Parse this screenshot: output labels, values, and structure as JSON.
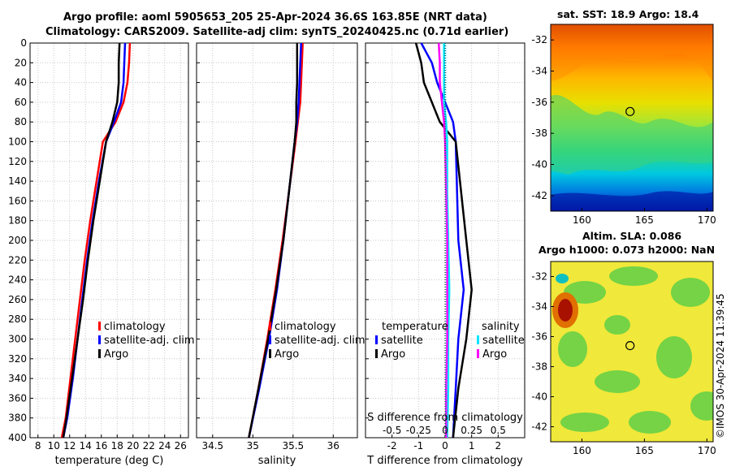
{
  "header": {
    "title_line1": "Argo profile: aoml 5905653_205 25-Apr-2024 36.6S 163.85E (NRT data)",
    "title_line2": "Climatology: CARS2009. Satellite-adj clim: synTS_20240425.nc (0.71d earlier)"
  },
  "timestamp": "©IMOS 30-Apr-2024 11:39:45",
  "colors": {
    "climatology": "#ff0000",
    "satellite": "#0000ff",
    "argo": "#000000",
    "satellite_salinity": "#00e5ff",
    "argo_salinity": "#ff00ff"
  },
  "chart_data": [
    {
      "type": "line",
      "name": "temperature-panel",
      "xlabel": "temperature (deg C)",
      "ylabel": "",
      "xlim": [
        7,
        27
      ],
      "ylim": [
        400,
        0
      ],
      "xticks": [
        8,
        10,
        12,
        14,
        16,
        18,
        20,
        22,
        24,
        26
      ],
      "yticks": [
        0,
        20,
        40,
        60,
        80,
        100,
        120,
        140,
        160,
        180,
        200,
        220,
        240,
        260,
        280,
        300,
        320,
        340,
        360,
        380,
        400
      ],
      "legend": [
        "climatology",
        "satellite-adj. clim",
        "Argo"
      ],
      "series": [
        {
          "name": "climatology",
          "color": "#ff0000",
          "points": [
            [
              19.6,
              0
            ],
            [
              19.5,
              20
            ],
            [
              19.3,
              40
            ],
            [
              18.8,
              60
            ],
            [
              17.8,
              80
            ],
            [
              16.2,
              100
            ],
            [
              15.4,
              140
            ],
            [
              14.6,
              180
            ],
            [
              13.9,
              220
            ],
            [
              13.3,
              260
            ],
            [
              12.7,
              300
            ],
            [
              12.1,
              340
            ],
            [
              11.5,
              380
            ],
            [
              11.0,
              400
            ]
          ]
        },
        {
          "name": "satellite-adj. clim",
          "color": "#0000ff",
          "points": [
            [
              19.0,
              0
            ],
            [
              18.9,
              20
            ],
            [
              18.8,
              40
            ],
            [
              18.5,
              60
            ],
            [
              17.6,
              80
            ],
            [
              16.6,
              100
            ],
            [
              15.7,
              140
            ],
            [
              14.9,
              180
            ],
            [
              14.2,
              220
            ],
            [
              13.6,
              260
            ],
            [
              13.0,
              300
            ],
            [
              12.4,
              340
            ],
            [
              11.7,
              380
            ],
            [
              11.2,
              400
            ]
          ]
        },
        {
          "name": "Argo",
          "color": "#000000",
          "points": [
            [
              18.3,
              0
            ],
            [
              18.2,
              20
            ],
            [
              18.2,
              40
            ],
            [
              18.0,
              60
            ],
            [
              17.4,
              80
            ],
            [
              16.6,
              100
            ],
            [
              15.8,
              140
            ],
            [
              15.0,
              180
            ],
            [
              14.3,
              220
            ],
            [
              13.7,
              260
            ],
            [
              13.0,
              300
            ],
            [
              12.3,
              340
            ],
            [
              11.6,
              380
            ],
            [
              11.2,
              400
            ]
          ]
        }
      ]
    },
    {
      "type": "line",
      "name": "salinity-panel",
      "xlabel": "salinity",
      "xlim": [
        34.3,
        36.3
      ],
      "ylim": [
        400,
        0
      ],
      "xticks": [
        34.5,
        35,
        35.5,
        36
      ],
      "xticklabels": [
        "34.5",
        "35",
        "35.5",
        "36"
      ],
      "legend": [
        "climatology",
        "satellite-adj. clim",
        "Argo"
      ],
      "series": [
        {
          "name": "climatology",
          "color": "#ff0000",
          "points": [
            [
              35.62,
              0
            ],
            [
              35.61,
              20
            ],
            [
              35.6,
              40
            ],
            [
              35.59,
              60
            ],
            [
              35.56,
              80
            ],
            [
              35.53,
              100
            ],
            [
              35.45,
              150
            ],
            [
              35.37,
              200
            ],
            [
              35.28,
              250
            ],
            [
              35.18,
              300
            ],
            [
              35.07,
              350
            ],
            [
              34.95,
              400
            ]
          ]
        },
        {
          "name": "satellite-adj. clim",
          "color": "#0000ff",
          "points": [
            [
              35.6,
              0
            ],
            [
              35.59,
              20
            ],
            [
              35.58,
              40
            ],
            [
              35.57,
              60
            ],
            [
              35.55,
              80
            ],
            [
              35.52,
              100
            ],
            [
              35.45,
              150
            ],
            [
              35.38,
              200
            ],
            [
              35.3,
              250
            ],
            [
              35.2,
              300
            ],
            [
              35.08,
              350
            ],
            [
              34.95,
              400
            ]
          ]
        },
        {
          "name": "Argo",
          "color": "#000000",
          "points": [
            [
              35.55,
              0
            ],
            [
              35.55,
              20
            ],
            [
              35.55,
              40
            ],
            [
              35.54,
              60
            ],
            [
              35.54,
              80
            ],
            [
              35.52,
              100
            ],
            [
              35.45,
              150
            ],
            [
              35.38,
              200
            ],
            [
              35.29,
              250
            ],
            [
              35.19,
              300
            ],
            [
              35.07,
              350
            ],
            [
              34.95,
              400
            ]
          ]
        }
      ]
    },
    {
      "type": "line",
      "name": "difference-panel",
      "xlabel": "T difference from climatology",
      "top_axis_label": "S difference from climatology",
      "xlim": [
        -3,
        3
      ],
      "ylim": [
        400,
        0
      ],
      "xticks": [
        -2,
        -1,
        0,
        1,
        2
      ],
      "s_xlim": [
        -0.75,
        0.75
      ],
      "s_ticks": [
        -0.5,
        -0.25,
        0,
        0.25,
        0.5
      ],
      "s_ticklabels": [
        "-0.5",
        "-0.25",
        "0",
        "0.25",
        "0.5"
      ],
      "legend_temperature": [
        "temperature",
        "satellite",
        "Argo"
      ],
      "legend_salinity": [
        "salinity",
        "satellite",
        "Argo"
      ],
      "series": [
        {
          "name": "T satellite",
          "color": "#0000ff",
          "points": [
            [
              -0.9,
              0
            ],
            [
              -0.5,
              20
            ],
            [
              -0.3,
              40
            ],
            [
              0.0,
              60
            ],
            [
              0.3,
              80
            ],
            [
              0.4,
              100
            ],
            [
              0.45,
              150
            ],
            [
              0.5,
              200
            ],
            [
              0.7,
              250
            ],
            [
              0.5,
              300
            ],
            [
              0.4,
              350
            ],
            [
              0.3,
              400
            ]
          ]
        },
        {
          "name": "T Argo",
          "color": "#000000",
          "points": [
            [
              -1.1,
              0
            ],
            [
              -0.9,
              20
            ],
            [
              -0.8,
              40
            ],
            [
              -0.5,
              60
            ],
            [
              -0.2,
              80
            ],
            [
              0.4,
              100
            ],
            [
              0.6,
              150
            ],
            [
              0.8,
              200
            ],
            [
              1.0,
              250
            ],
            [
              0.8,
              300
            ],
            [
              0.5,
              350
            ],
            [
              0.3,
              400
            ]
          ]
        },
        {
          "name": "S satellite",
          "color": "#00e5ff",
          "points": [
            [
              -0.01,
              0
            ],
            [
              -0.01,
              20
            ],
            [
              -0.01,
              40
            ],
            [
              -0.01,
              60
            ],
            [
              0.01,
              80
            ],
            [
              0.02,
              100
            ],
            [
              0.02,
              150
            ],
            [
              0.03,
              200
            ],
            [
              0.04,
              250
            ],
            [
              0.03,
              300
            ],
            [
              0.03,
              350
            ],
            [
              0.02,
              400
            ]
          ]
        },
        {
          "name": "S Argo",
          "color": "#ff00ff",
          "points": [
            [
              -0.06,
              0
            ],
            [
              -0.05,
              20
            ],
            [
              -0.05,
              40
            ],
            [
              -0.03,
              60
            ],
            [
              -0.01,
              80
            ],
            [
              0.0,
              100
            ],
            [
              0.01,
              150
            ],
            [
              0.02,
              200
            ],
            [
              0.02,
              250
            ],
            [
              0.02,
              300
            ],
            [
              0.01,
              350
            ],
            [
              0.01,
              400
            ]
          ]
        }
      ]
    },
    {
      "type": "heatmap",
      "name": "sst-map",
      "title": "sat. SST: 18.9 Argo: 18.4",
      "xticks": [
        160,
        165,
        170
      ],
      "yticks": [
        -32,
        -34,
        -36,
        -38,
        -40,
        -42
      ],
      "xlim": [
        157.5,
        170.5
      ],
      "ylim": [
        -43,
        -31
      ],
      "marker": {
        "lon": 163.85,
        "lat": -36.6
      }
    },
    {
      "type": "heatmap",
      "name": "sla-map",
      "title_line1": "Altim. SLA: 0.086",
      "title_line2": "Argo h1000: 0.073 h2000: NaN",
      "xticks": [
        160,
        165,
        170
      ],
      "yticks": [
        -32,
        -34,
        -36,
        -38,
        -40,
        -42
      ],
      "xlim": [
        157.5,
        170.5
      ],
      "ylim": [
        -43,
        -31
      ],
      "marker": {
        "lon": 163.85,
        "lat": -36.6
      }
    }
  ]
}
